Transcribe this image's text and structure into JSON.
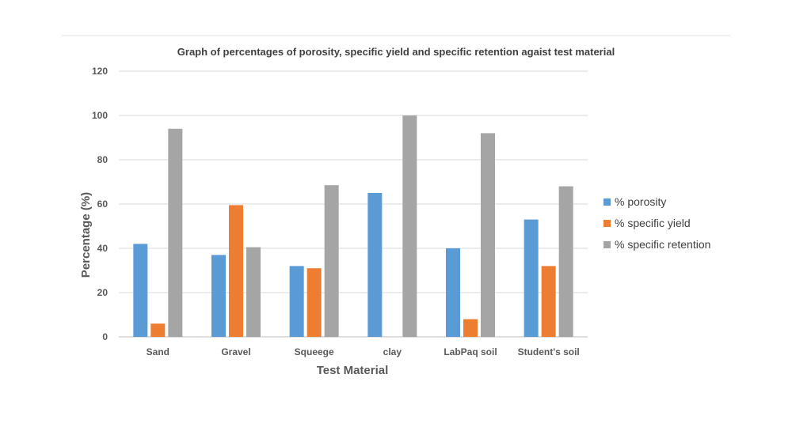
{
  "chart_data": {
    "type": "bar",
    "title": "Graph of percentages of porosity, specific yield and specific retention agaist test material",
    "xlabel": "Test Material",
    "ylabel": "Percentage (%)",
    "ylim": [
      0,
      120
    ],
    "yticks": [
      0,
      20,
      40,
      60,
      80,
      100,
      120
    ],
    "grid": true,
    "legend_position": "right",
    "categories": [
      "Sand",
      "Gravel",
      "Squeege",
      "clay",
      "LabPaq soil",
      "Student's soil"
    ],
    "series": [
      {
        "name": "% porosity",
        "color": "#5B9BD5",
        "values": [
          42,
          37,
          32,
          65,
          40,
          53
        ]
      },
      {
        "name": "% specific yield",
        "color": "#ED7D31",
        "values": [
          6,
          59.5,
          31,
          0,
          8,
          32
        ]
      },
      {
        "name": "% specific retention",
        "color": "#A5A5A5",
        "values": [
          94,
          40.5,
          68.5,
          100,
          92,
          68
        ]
      }
    ]
  }
}
